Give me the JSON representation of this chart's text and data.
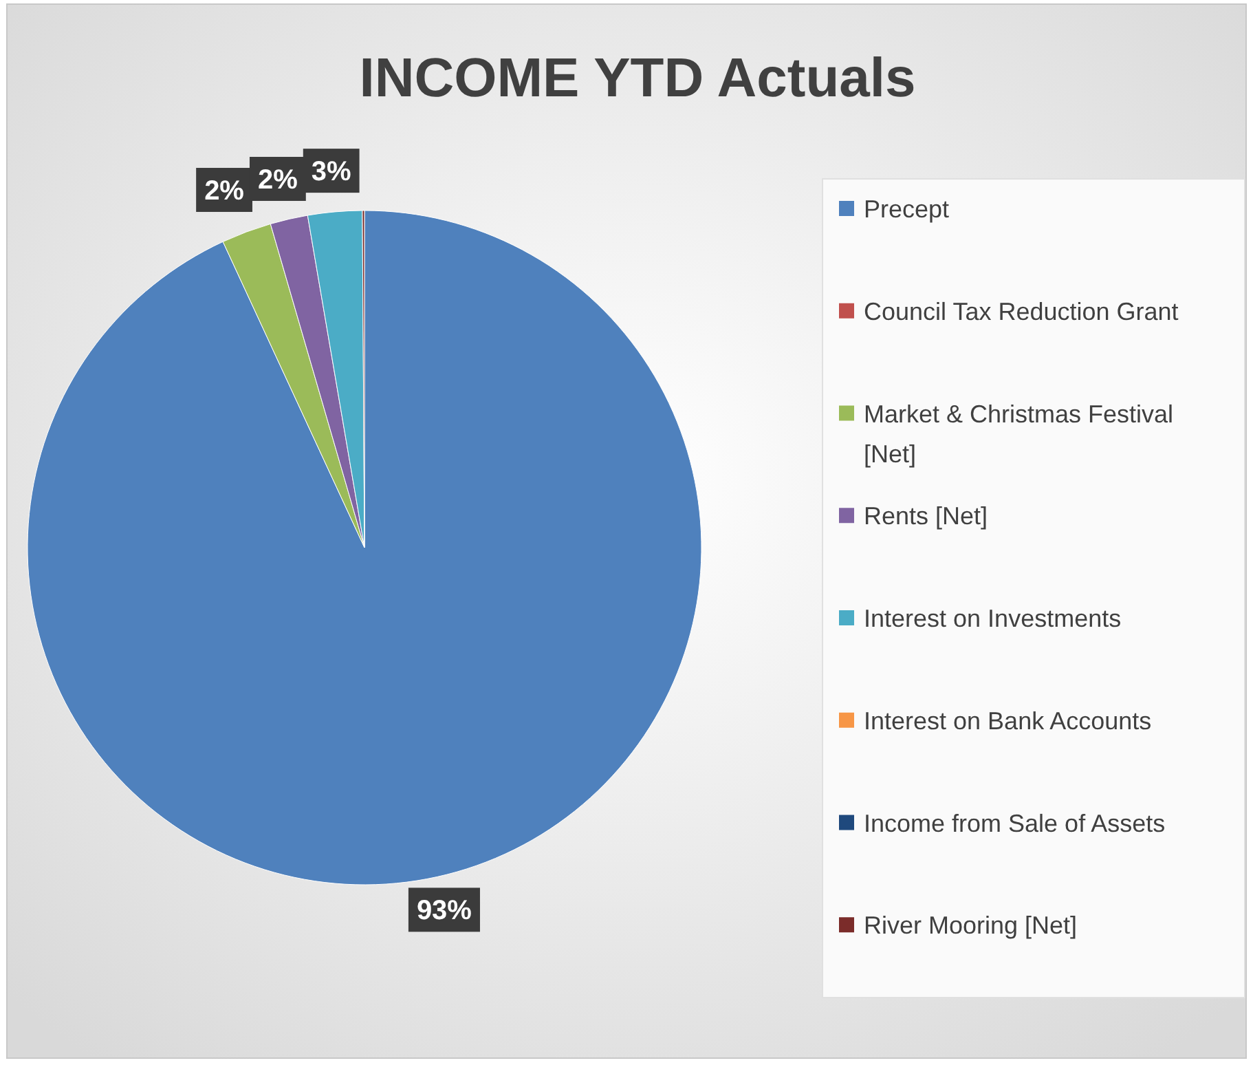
{
  "chart_data": {
    "type": "pie",
    "title": "INCOME YTD Actuals",
    "categories": [
      "Precept",
      "Council Tax Reduction Grant",
      "Market & Christmas Festival [Net]",
      "Rents [Net]",
      "Interest on Investments",
      "Interest on Bank Accounts",
      "Income from Sale of Assets",
      "River Mooring [Net]"
    ],
    "values": [
      93.1,
      0,
      2.4,
      1.8,
      2.6,
      0,
      0,
      0.1
    ],
    "colors": [
      "#4f81bd",
      "#c0504d",
      "#9bbb59",
      "#8064a2",
      "#4bacc6",
      "#f79646",
      "#1f497d",
      "#7b2c2a"
    ],
    "value_labels": [
      "93%",
      null,
      "2%",
      "2%",
      "3%",
      null,
      null,
      null
    ],
    "legend": "right"
  }
}
